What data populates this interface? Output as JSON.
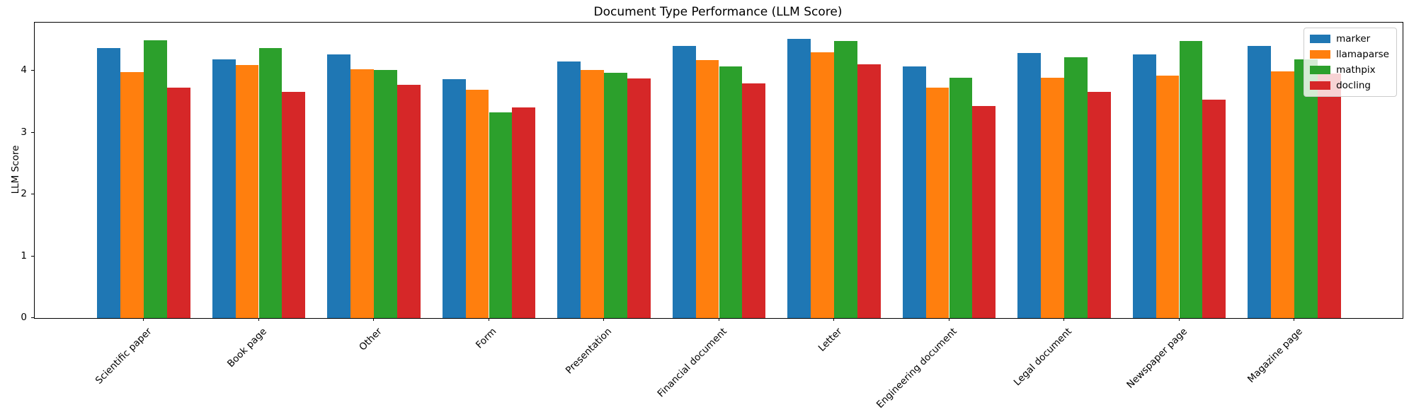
{
  "chart_data": {
    "type": "bar",
    "title": "Document Type Performance (LLM Score)",
    "xlabel": "",
    "ylabel": "LLM Score",
    "ylim": [
      0,
      4.78
    ],
    "yticks": [
      0,
      1,
      2,
      3,
      4
    ],
    "grid": false,
    "legend_position": "upper right",
    "categories": [
      "Scientific paper",
      "Book page",
      "Other",
      "Form",
      "Presentation",
      "Financial document",
      "Letter",
      "Engineering document",
      "Legal document",
      "Newspaper page",
      "Magazine page"
    ],
    "series": [
      {
        "name": "marker",
        "color": "#1f77b4",
        "values": [
          4.37,
          4.18,
          4.27,
          3.86,
          4.15,
          4.4,
          4.52,
          4.07,
          4.29,
          4.27,
          4.4
        ]
      },
      {
        "name": "llamaparse",
        "color": "#ff7f0e",
        "values": [
          3.98,
          4.09,
          4.03,
          3.69,
          4.01,
          4.17,
          4.3,
          3.73,
          3.89,
          3.92,
          3.99
        ]
      },
      {
        "name": "mathpix",
        "color": "#2ca02c",
        "values": [
          4.49,
          4.37,
          4.01,
          3.33,
          3.97,
          4.07,
          4.48,
          3.89,
          4.22,
          4.48,
          4.18
        ]
      },
      {
        "name": "docling",
        "color": "#d62728",
        "values": [
          3.73,
          3.66,
          3.77,
          3.41,
          3.88,
          3.8,
          4.1,
          3.43,
          3.66,
          3.53,
          3.96
        ]
      }
    ]
  }
}
